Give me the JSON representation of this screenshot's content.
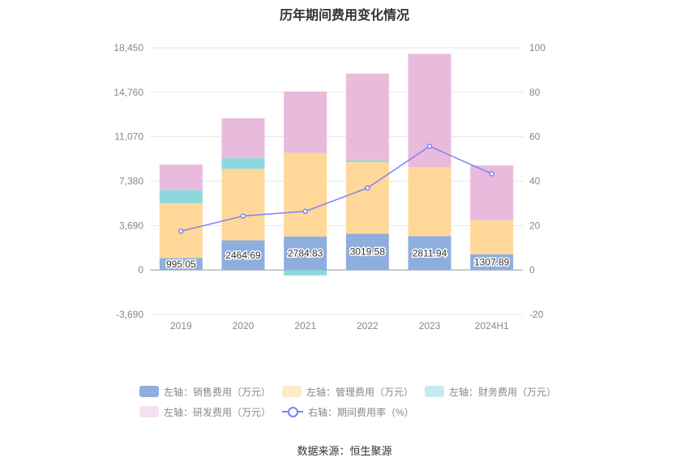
{
  "page": {
    "title": "历年期间费用变化情况",
    "source": "数据来源：恒生聚源"
  },
  "chart_data": {
    "type": "bar",
    "stacked": true,
    "title": "历年期间费用变化情况",
    "categories": [
      "2019",
      "2020",
      "2021",
      "2022",
      "2023",
      "2024H1"
    ],
    "series": [
      {
        "name": "左轴：销售费用（万元）",
        "axis": "left",
        "color": "#8eaede",
        "values": [
          995.05,
          2464.69,
          2784.83,
          3019.58,
          2811.94,
          1307.89
        ],
        "labels": [
          "995.05",
          "2464.69",
          "2784.83",
          "3019.58",
          "2811.94",
          "1307.89"
        ]
      },
      {
        "name": "左轴：管理费用（万元）",
        "axis": "left",
        "color": "#ffd899",
        "values": [
          4550,
          5930,
          6940,
          5940,
          5720,
          2830
        ]
      },
      {
        "name": "左轴：财务费用（万元）",
        "axis": "left",
        "color": "#8dd8dc",
        "values": [
          1100,
          900,
          -450,
          150,
          0,
          0
        ]
      },
      {
        "name": "左轴：研发费用（万元）",
        "axis": "left",
        "color": "#e8bbdc",
        "values": [
          2100,
          3300,
          5100,
          7200,
          9420,
          4540
        ]
      },
      {
        "name": "右轴：期间费用率（%）",
        "axis": "right",
        "type": "line",
        "color": "#7b83f2",
        "values": [
          17.5,
          24.3,
          26.4,
          36.9,
          55.7,
          43.3
        ]
      }
    ],
    "left_axis": {
      "min": -3690,
      "max": 18450,
      "ticks": [
        "-3,690",
        "0",
        "3,690",
        "7,380",
        "11,070",
        "14,760",
        "18,450"
      ],
      "tick_values": [
        -3690,
        0,
        3690,
        7380,
        11070,
        14760,
        18450
      ]
    },
    "right_axis": {
      "min": -20,
      "max": 100,
      "ticks": [
        "-20",
        "0",
        "20",
        "40",
        "60",
        "80",
        "100"
      ],
      "tick_values": [
        -20,
        0,
        20,
        40,
        60,
        80,
        100
      ]
    },
    "legend": {
      "position": "bottom",
      "items": [
        {
          "label": "左轴：销售费用（万元）",
          "color": "#8eaede",
          "kind": "bar"
        },
        {
          "label": "左轴：管理费用（万元）",
          "color": "#ffe9c7",
          "kind": "bar"
        },
        {
          "label": "左轴：财务费用（万元）",
          "color": "#c4ecee",
          "kind": "bar"
        },
        {
          "label": "左轴：研发费用（万元）",
          "color": "#f5e0ef",
          "kind": "bar"
        },
        {
          "label": "右轴：期间费用率（%）",
          "color": "#7b83f2",
          "kind": "line"
        }
      ]
    },
    "grid": true
  }
}
